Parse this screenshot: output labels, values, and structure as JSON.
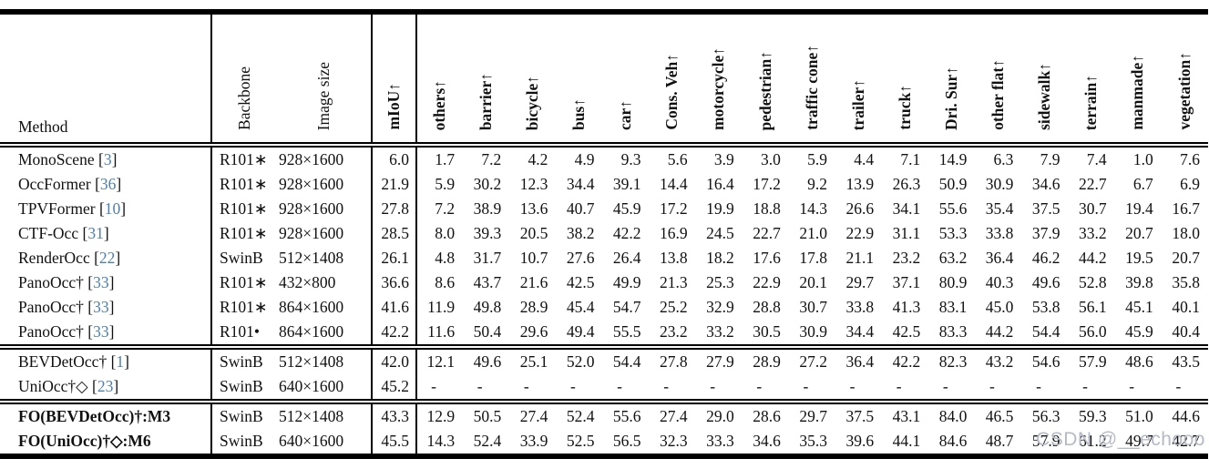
{
  "watermark": {
    "text": "CSDN @__echooo"
  },
  "table": {
    "method_header": "Method",
    "backbone_header": "Backbone",
    "image_size_header": "Image size",
    "miou_header": "mIoU↑",
    "class_headers": [
      "others↑",
      "barrier↑",
      "bicycle↑",
      "bus↑",
      "car↑",
      "Cons. Veh↑",
      "motorcycle↑",
      "pedestrian↑",
      "traffic cone↑",
      "trailer↑",
      "truck↑",
      "Dri. Sur↑",
      "other flat↑",
      "sidewalk↑",
      "terrain↑",
      "manmade↑",
      "vegetation↑"
    ],
    "groups": [
      {
        "rows": [
          {
            "method": "MonoScene",
            "cite": "3",
            "bold": false,
            "backbone": "R101∗",
            "image_size": "928×1600",
            "miou": "6.0",
            "values": [
              "1.7",
              "7.2",
              "4.2",
              "4.9",
              "9.3",
              "5.6",
              "3.9",
              "3.0",
              "5.9",
              "4.4",
              "7.1",
              "14.9",
              "6.3",
              "7.9",
              "7.4",
              "1.0",
              "7.6"
            ]
          },
          {
            "method": "OccFormer",
            "cite": "36",
            "bold": false,
            "backbone": "R101∗",
            "image_size": "928×1600",
            "miou": "21.9",
            "values": [
              "5.9",
              "30.2",
              "12.3",
              "34.4",
              "39.1",
              "14.4",
              "16.4",
              "17.2",
              "9.2",
              "13.9",
              "26.3",
              "50.9",
              "30.9",
              "34.6",
              "22.7",
              "6.7",
              "6.9"
            ]
          },
          {
            "method": "TPVFormer",
            "cite": "10",
            "bold": false,
            "backbone": "R101∗",
            "image_size": "928×1600",
            "miou": "27.8",
            "values": [
              "7.2",
              "38.9",
              "13.6",
              "40.7",
              "45.9",
              "17.2",
              "19.9",
              "18.8",
              "14.3",
              "26.6",
              "34.1",
              "55.6",
              "35.4",
              "37.5",
              "30.7",
              "19.4",
              "16.7"
            ]
          },
          {
            "method": "CTF-Occ",
            "cite": "31",
            "bold": false,
            "backbone": "R101∗",
            "image_size": "928×1600",
            "miou": "28.5",
            "values": [
              "8.0",
              "39.3",
              "20.5",
              "38.2",
              "42.2",
              "16.9",
              "24.5",
              "22.7",
              "21.0",
              "22.9",
              "31.1",
              "53.3",
              "33.8",
              "37.9",
              "33.2",
              "20.7",
              "18.0"
            ]
          },
          {
            "method": "RenderOcc",
            "cite": "22",
            "bold": false,
            "backbone": "SwinB",
            "image_size": "512×1408",
            "miou": "26.1",
            "values": [
              "4.8",
              "31.7",
              "10.7",
              "27.6",
              "26.4",
              "13.8",
              "18.2",
              "17.6",
              "17.8",
              "21.1",
              "23.2",
              "63.2",
              "36.4",
              "46.2",
              "44.2",
              "19.5",
              "20.7"
            ]
          },
          {
            "method": "PanoOcc†",
            "cite": "33",
            "bold": false,
            "backbone": "R101∗",
            "image_size": "432×800",
            "miou": "36.6",
            "values": [
              "8.6",
              "43.7",
              "21.6",
              "42.5",
              "49.9",
              "21.3",
              "25.3",
              "22.9",
              "20.1",
              "29.7",
              "37.1",
              "80.9",
              "40.3",
              "49.6",
              "52.8",
              "39.8",
              "35.8"
            ]
          },
          {
            "method": "PanoOcc†",
            "cite": "33",
            "bold": false,
            "backbone": "R101∗",
            "image_size": "864×1600",
            "miou": "41.6",
            "values": [
              "11.9",
              "49.8",
              "28.9",
              "45.4",
              "54.7",
              "25.2",
              "32.9",
              "28.8",
              "30.7",
              "33.8",
              "41.3",
              "83.1",
              "45.0",
              "53.8",
              "56.1",
              "45.1",
              "40.1"
            ]
          },
          {
            "method": "PanoOcc†",
            "cite": "33",
            "bold": false,
            "backbone": "R101•",
            "image_size": "864×1600",
            "miou": "42.2",
            "values": [
              "11.6",
              "50.4",
              "29.6",
              "49.4",
              "55.5",
              "23.2",
              "33.2",
              "30.5",
              "30.9",
              "34.4",
              "42.5",
              "83.3",
              "44.2",
              "54.4",
              "56.0",
              "45.9",
              "40.4"
            ]
          }
        ]
      },
      {
        "rows": [
          {
            "method": "BEVDetOcc†",
            "cite": "1",
            "bold": false,
            "backbone": "SwinB",
            "image_size": "512×1408",
            "miou": "42.0",
            "values": [
              "12.1",
              "49.6",
              "25.1",
              "52.0",
              "54.4",
              "27.8",
              "27.9",
              "28.9",
              "27.2",
              "36.4",
              "42.2",
              "82.3",
              "43.2",
              "54.6",
              "57.9",
              "48.6",
              "43.5"
            ]
          },
          {
            "method": "UniOcc†◇",
            "cite": "23",
            "bold": false,
            "backbone": "SwinB",
            "image_size": "640×1600",
            "miou": "45.2",
            "values": [
              "-",
              "-",
              "-",
              "-",
              "-",
              "-",
              "-",
              "-",
              "-",
              "-",
              "-",
              "-",
              "-",
              "-",
              "-",
              "-",
              "-"
            ]
          }
        ]
      },
      {
        "rows": [
          {
            "method": "FO(BEVDetOcc)†:M3",
            "cite": null,
            "bold": true,
            "backbone": "SwinB",
            "image_size": "512×1408",
            "miou": "43.3",
            "values": [
              "12.9",
              "50.5",
              "27.4",
              "52.4",
              "55.6",
              "27.4",
              "29.0",
              "28.6",
              "29.7",
              "37.5",
              "43.1",
              "84.0",
              "46.5",
              "56.3",
              "59.3",
              "51.0",
              "44.6"
            ]
          },
          {
            "method": "FO(UniOcc)†◇:M6",
            "cite": null,
            "bold": true,
            "backbone": "SwinB",
            "image_size": "640×1600",
            "miou": "45.5",
            "values": [
              "14.3",
              "52.4",
              "33.9",
              "52.5",
              "56.5",
              "32.3",
              "33.3",
              "34.6",
              "35.3",
              "39.6",
              "44.1",
              "84.6",
              "48.7",
              "57.9",
              "61.2",
              "49.7",
              "42.7"
            ]
          }
        ]
      }
    ]
  },
  "colors": {
    "citation": "#4d7fb0",
    "watermark": "#b6bac6",
    "rule": "#000000"
  }
}
